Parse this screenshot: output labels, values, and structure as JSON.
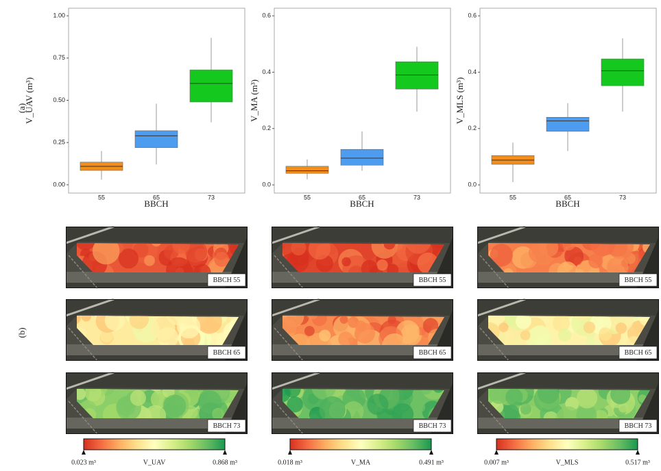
{
  "panel_labels": [
    "(a)",
    "(b)"
  ],
  "chart_data": [
    {
      "type": "box",
      "ylabel": "V_UAV (m³)",
      "xlabel": "BBCH",
      "categories": [
        "55",
        "65",
        "73"
      ],
      "colors": [
        "#f28e1c",
        "#4d9cf0",
        "#14c81e"
      ],
      "boxes": [
        {
          "whisker_low": 0.03,
          "q1": 0.085,
          "median": 0.109,
          "q3": 0.134,
          "whisker_high": 0.2
        },
        {
          "whisker_low": 0.12,
          "q1": 0.22,
          "median": 0.29,
          "q3": 0.32,
          "whisker_high": 0.48
        },
        {
          "whisker_low": 0.37,
          "q1": 0.49,
          "median": 0.6,
          "q3": 0.68,
          "whisker_high": 0.87
        }
      ],
      "ylim": [
        -0.049,
        1.045
      ],
      "yticks": [
        {
          "value": 0,
          "label": "0.00"
        },
        0.25,
        {
          "value": 0.5,
          "label": "0.50"
        },
        0.75,
        {
          "value": 1,
          "label": "1.00"
        }
      ]
    },
    {
      "type": "box",
      "ylabel": "V_MA (m³)",
      "xlabel": "BBCH",
      "categories": [
        "55",
        "65",
        "73"
      ],
      "colors": [
        "#f28e1c",
        "#4d9cf0",
        "#14c81e"
      ],
      "boxes": [
        {
          "whisker_low": 0.02,
          "q1": 0.041,
          "median": 0.05,
          "q3": 0.066,
          "whisker_high": 0.09
        },
        {
          "whisker_low": 0.05,
          "q1": 0.07,
          "median": 0.095,
          "q3": 0.126,
          "whisker_high": 0.19
        },
        {
          "whisker_low": 0.26,
          "q1": 0.34,
          "median": 0.39,
          "q3": 0.437,
          "whisker_high": 0.49
        }
      ],
      "ylim": [
        -0.029,
        0.627
      ],
      "yticks": [
        {
          "value": 0,
          "label": "0.0"
        },
        0.2,
        0.4,
        0.6
      ]
    },
    {
      "type": "box",
      "ylabel": "V_MLS (m³)",
      "xlabel": "BBCH",
      "categories": [
        "55",
        "65",
        "73"
      ],
      "colors": [
        "#f28e1c",
        "#4d9cf0",
        "#14c81e"
      ],
      "boxes": [
        {
          "whisker_low": 0.01,
          "q1": 0.073,
          "median": 0.088,
          "q3": 0.104,
          "whisker_high": 0.15
        },
        {
          "whisker_low": 0.12,
          "q1": 0.19,
          "median": 0.227,
          "q3": 0.24,
          "whisker_high": 0.29
        },
        {
          "whisker_low": 0.26,
          "q1": 0.352,
          "median": 0.405,
          "q3": 0.447,
          "whisker_high": 0.52
        }
      ],
      "ylim": [
        -0.029,
        0.627
      ],
      "yticks": [
        {
          "value": 0,
          "label": "0.0"
        },
        0.2,
        0.4,
        0.6
      ]
    }
  ],
  "colormap": [
    "#d7301f",
    "#f46d43",
    "#fdae61",
    "#fee08b",
    "#ffffbf",
    "#d9ef8b",
    "#a6d96a",
    "#66bd63",
    "#1a9850"
  ],
  "maps": [
    {
      "labels": [
        "BBCH 55",
        "BBCH 65",
        "BBCH 73"
      ],
      "colorbar": {
        "name": "V_UAV",
        "min_label": "0.023 m³",
        "max_label": "0.868 m³"
      }
    },
    {
      "labels": [
        "BBCH 55",
        "BBCH 65",
        "BBCH 73"
      ],
      "colorbar": {
        "name": "V_MA",
        "min_label": "0.018 m³",
        "max_label": "0.491 m³"
      }
    },
    {
      "labels": [
        "BBCH 55",
        "BBCH 65",
        "BBCH 73"
      ],
      "colorbar": {
        "name": "V_MLS",
        "min_label": "0.007 m³",
        "max_label": "0.517 m³"
      }
    }
  ]
}
